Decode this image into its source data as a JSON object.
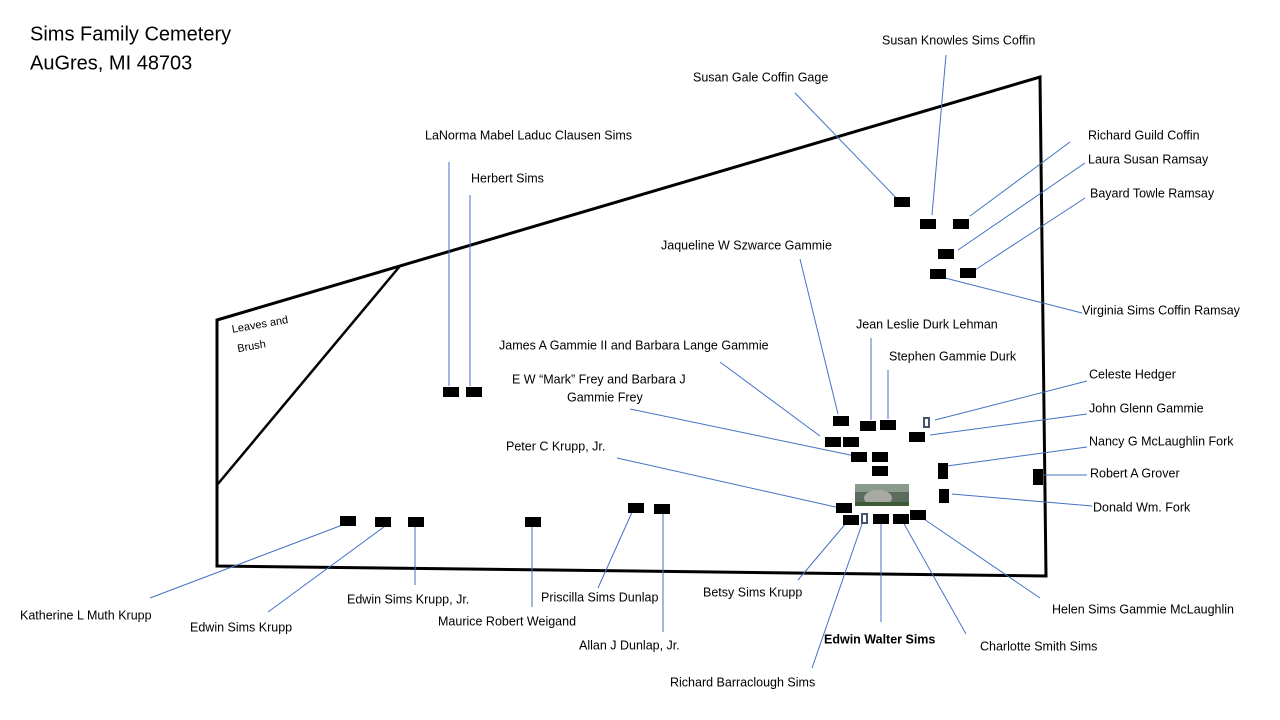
{
  "title": {
    "line1": "Sims Family Cemetery",
    "line2": "AuGres, MI 48703"
  },
  "area_label": {
    "line1": "Leaves and",
    "line2": "Brush"
  },
  "colors": {
    "leader": "#4472c4",
    "grave": "#000000",
    "boundary": "#000000"
  },
  "graves": {
    "katherine": "Katherine L Muth Krupp",
    "edwin_krupp": "Edwin Sims Krupp",
    "edwin_krupp_jr": "Edwin Sims Krupp, Jr.",
    "maurice": "Maurice Robert Weigand",
    "priscilla": "Priscilla Sims Dunlap",
    "allan": "Allan J Dunlap, Jr.",
    "betsy": "Betsy Sims Krupp",
    "richard_b": "Richard Barraclough Sims",
    "edwin_walter": "Edwin Walter Sims",
    "charlotte": "Charlotte Smith Sims",
    "helen": "Helen Sims Gammie McLaughlin",
    "donald": "Donald Wm. Fork",
    "robert": "Robert A Grover",
    "nancy": "Nancy G McLaughlin Fork",
    "john": "John Glenn Gammie",
    "celeste": "Celeste Hedger",
    "stephen": "Stephen Gammie Durk",
    "jean": "Jean Leslie Durk Lehman",
    "jaqueline": "Jaqueline W Szwarce Gammie",
    "james": "James A Gammie II and Barbara Lange Gammie",
    "frey_line1": "E W “Mark” Frey and Barbara J",
    "frey_line2": "Gammie Frey",
    "peter": "Peter C Krupp, Jr.",
    "virginia": "Virginia Sims Coffin Ramsay",
    "bayard": "Bayard Towle Ramsay",
    "laura": "Laura Susan Ramsay",
    "richard_g": "Richard Guild Coffin",
    "susan_k": "Susan Knowles  Sims Coffin",
    "susan_g": "Susan Gale Coffin Gage",
    "lanorma": "LaNorma Mabel Laduc Clausen Sims",
    "herbert": "Herbert Sims"
  }
}
